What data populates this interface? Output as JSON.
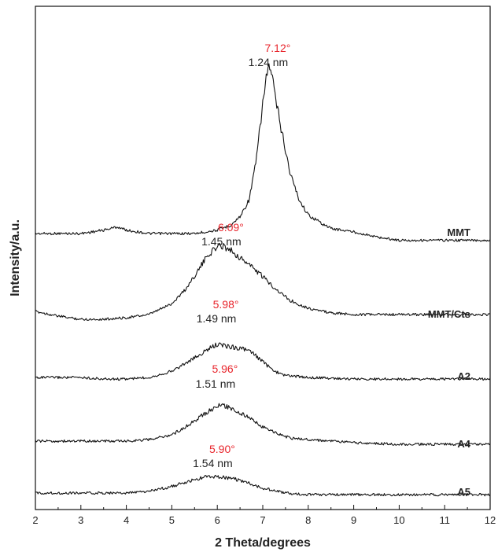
{
  "chart_data": {
    "type": "line",
    "title": "",
    "xlabel": "2 Theta/degrees",
    "ylabel": "Intensity/a.u.",
    "xlim": [
      2,
      12
    ],
    "x_ticks": [
      2,
      3,
      4,
      5,
      6,
      7,
      8,
      9,
      10,
      11,
      12
    ],
    "y_ticks_shown": false,
    "grid": false,
    "legend": "none",
    "annotation_color": "#e8262d",
    "series": [
      {
        "name": "MMT",
        "peak_x": 7.12,
        "peak_angle_label": "7.12°",
        "d_spacing_label": "1.24 nm",
        "x": [
          2.0,
          2.5,
          3.0,
          3.5,
          3.8,
          4.0,
          4.5,
          5.0,
          5.5,
          6.0,
          6.3,
          6.5,
          6.7,
          6.85,
          7.0,
          7.12,
          7.2,
          7.3,
          7.45,
          7.6,
          7.8,
          8.0,
          8.3,
          8.5,
          9.0,
          9.5,
          10.0,
          11.0,
          12.0
        ],
        "y": [
          0.0,
          0.0,
          0.0,
          0.02,
          0.04,
          0.02,
          0.0,
          0.0,
          0.0,
          0.02,
          0.05,
          0.1,
          0.2,
          0.42,
          0.77,
          1.0,
          0.93,
          0.77,
          0.56,
          0.36,
          0.2,
          0.11,
          0.06,
          0.03,
          0.01,
          -0.02,
          -0.04,
          -0.04,
          -0.04
        ]
      },
      {
        "name": "MMT/Cts",
        "peak_x": 6.09,
        "peak_angle_label": "6.09°",
        "d_spacing_label": "1.45 nm",
        "x": [
          2.0,
          2.5,
          3.0,
          3.5,
          4.0,
          4.5,
          5.0,
          5.3,
          5.6,
          5.8,
          6.0,
          6.1,
          6.3,
          6.5,
          6.7,
          7.0,
          7.3,
          7.6,
          8.0,
          8.5,
          9.0,
          10.0,
          11.0,
          12.0
        ],
        "y": [
          0.0,
          -0.03,
          -0.05,
          -0.05,
          -0.04,
          -0.02,
          0.05,
          0.14,
          0.27,
          0.36,
          0.41,
          0.42,
          0.39,
          0.34,
          0.3,
          0.22,
          0.14,
          0.07,
          0.02,
          -0.01,
          -0.02,
          -0.02,
          -0.02,
          -0.02
        ]
      },
      {
        "name": "A2",
        "peak_x": 5.98,
        "peak_angle_label": "5.98°",
        "d_spacing_label": "1.49 nm",
        "x": [
          2.0,
          2.5,
          3.0,
          3.5,
          4.0,
          4.5,
          5.0,
          5.3,
          5.6,
          5.8,
          6.0,
          6.2,
          6.4,
          6.6,
          6.8,
          7.0,
          7.2,
          7.4,
          7.6,
          8.0,
          9.0,
          10.0,
          11.0,
          12.0
        ],
        "y": [
          0.0,
          0.0,
          0.0,
          -0.01,
          -0.01,
          0.0,
          0.04,
          0.09,
          0.14,
          0.18,
          0.21,
          0.2,
          0.19,
          0.18,
          0.15,
          0.1,
          0.05,
          0.02,
          0.01,
          0.0,
          -0.01,
          -0.01,
          -0.01,
          -0.01
        ]
      },
      {
        "name": "A4",
        "peak_x": 5.96,
        "peak_angle_label": "5.96°",
        "d_spacing_label": "1.51 nm",
        "x": [
          2.0,
          2.5,
          3.0,
          3.5,
          4.0,
          4.5,
          5.0,
          5.3,
          5.6,
          5.8,
          6.0,
          6.1,
          6.3,
          6.5,
          6.8,
          7.0,
          7.3,
          7.6,
          8.0,
          9.0,
          10.0,
          11.0,
          12.0
        ],
        "y": [
          0.0,
          0.0,
          0.0,
          0.0,
          0.0,
          0.01,
          0.04,
          0.09,
          0.15,
          0.19,
          0.22,
          0.23,
          0.21,
          0.18,
          0.13,
          0.09,
          0.05,
          0.02,
          0.01,
          -0.01,
          -0.02,
          -0.02,
          -0.02
        ]
      },
      {
        "name": "A5",
        "peak_x": 5.9,
        "peak_angle_label": "5.90°",
        "d_spacing_label": "1.54 nm",
        "x": [
          2.0,
          2.5,
          3.0,
          3.5,
          4.0,
          4.5,
          5.0,
          5.5,
          5.8,
          6.0,
          6.3,
          6.6,
          7.0,
          7.5,
          8.0,
          9.0,
          10.0,
          11.0,
          12.0
        ],
        "y": [
          0.0,
          0.0,
          0.0,
          0.0,
          0.0,
          0.01,
          0.04,
          0.08,
          0.1,
          0.1,
          0.09,
          0.07,
          0.03,
          0.0,
          -0.01,
          -0.01,
          -0.01,
          -0.01,
          -0.01
        ]
      }
    ]
  }
}
